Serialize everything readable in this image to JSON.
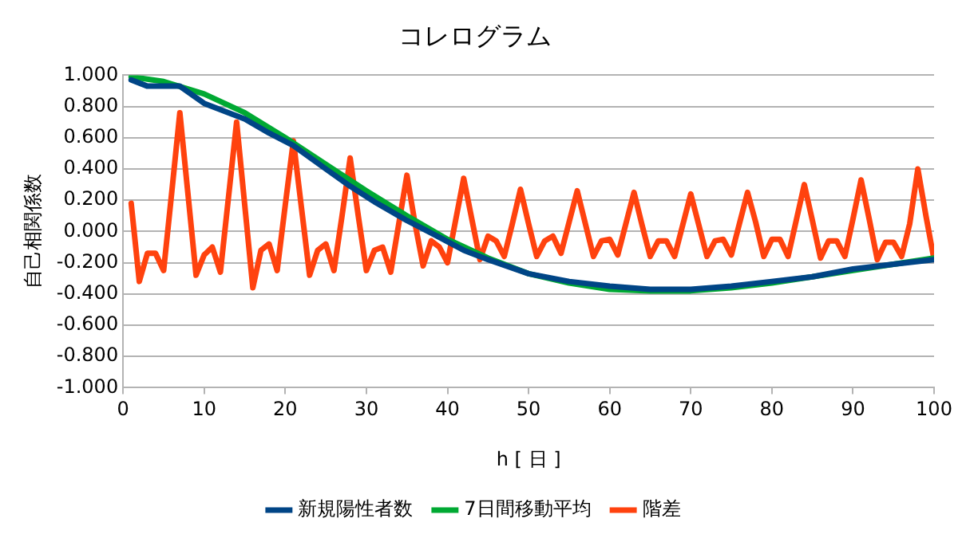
{
  "chart_data": {
    "type": "line",
    "title": "コレログラム",
    "xlabel": "h [ 日 ]",
    "ylabel": "自己相関係数",
    "xlim": [
      0,
      100
    ],
    "xticks": [
      0,
      10,
      20,
      30,
      40,
      50,
      60,
      70,
      80,
      90,
      100
    ],
    "ylim": [
      -1,
      1
    ],
    "yticks": [
      {
        "value": -1,
        "label": "-1.000"
      },
      {
        "value": -0.8,
        "label": "-0.800"
      },
      {
        "value": -0.6,
        "label": "-0.600"
      },
      {
        "value": -0.4,
        "label": "-0.400"
      },
      {
        "value": -0.2,
        "label": "-0.200"
      },
      {
        "value": 0,
        "label": "0.000"
      },
      {
        "value": 0.2,
        "label": "0.200"
      },
      {
        "value": 0.4,
        "label": "0.400"
      },
      {
        "value": 0.6,
        "label": "0.600"
      },
      {
        "value": 0.8,
        "label": "0.800"
      },
      {
        "value": 1,
        "label": "1.000"
      }
    ],
    "grid": "y",
    "legend": "bottom",
    "marker": "none",
    "line_style": "solid",
    "series": [
      {
        "name": "新規陽性者数",
        "color": "#004586",
        "x": [
          1,
          3,
          5,
          7,
          10,
          13,
          15,
          18,
          21,
          25,
          28,
          31,
          35,
          38,
          42,
          45,
          50,
          55,
          60,
          65,
          70,
          75,
          80,
          85,
          90,
          95,
          100
        ],
        "values": [
          0.97,
          0.93,
          0.93,
          0.93,
          0.82,
          0.76,
          0.72,
          0.63,
          0.55,
          0.4,
          0.29,
          0.19,
          0.07,
          -0.01,
          -0.12,
          -0.18,
          -0.27,
          -0.32,
          -0.35,
          -0.37,
          -0.37,
          -0.35,
          -0.32,
          -0.29,
          -0.24,
          -0.21,
          -0.18
        ]
      },
      {
        "name": "7日間移動平均",
        "color": "#00a933",
        "x": [
          1,
          5,
          10,
          15,
          20,
          25,
          30,
          35,
          40,
          45,
          50,
          55,
          60,
          65,
          70,
          75,
          80,
          85,
          90,
          95,
          100
        ],
        "values": [
          0.99,
          0.96,
          0.88,
          0.76,
          0.6,
          0.43,
          0.26,
          0.1,
          -0.05,
          -0.17,
          -0.27,
          -0.33,
          -0.37,
          -0.38,
          -0.38,
          -0.36,
          -0.33,
          -0.29,
          -0.25,
          -0.21,
          -0.17
        ]
      },
      {
        "name": "階差",
        "color": "#ff420e",
        "x": [
          1,
          2,
          3,
          4,
          5,
          6,
          7,
          8,
          9,
          10,
          11,
          12,
          13,
          14,
          15,
          16,
          17,
          18,
          19,
          20,
          21,
          22,
          23,
          24,
          25,
          26,
          27,
          28,
          29,
          30,
          31,
          32,
          33,
          34,
          35,
          36,
          37,
          38,
          39,
          40,
          41,
          42,
          43,
          44,
          45,
          46,
          47,
          48,
          49,
          50,
          51,
          52,
          53,
          54,
          55,
          56,
          57,
          58,
          59,
          60,
          61,
          62,
          63,
          64,
          65,
          66,
          67,
          68,
          69,
          70,
          71,
          72,
          73,
          74,
          75,
          76,
          77,
          78,
          79,
          80,
          81,
          82,
          83,
          84,
          85,
          86,
          87,
          88,
          89,
          90,
          91,
          92,
          93,
          94,
          95,
          96,
          97,
          98,
          99,
          100
        ],
        "values": [
          0.18,
          -0.32,
          -0.14,
          -0.14,
          -0.25,
          0.25,
          0.76,
          0.24,
          -0.28,
          -0.15,
          -0.1,
          -0.26,
          0.22,
          0.7,
          0.17,
          -0.36,
          -0.12,
          -0.08,
          -0.25,
          0.17,
          0.58,
          0.15,
          -0.28,
          -0.12,
          -0.08,
          -0.25,
          0.1,
          0.47,
          0.1,
          -0.25,
          -0.12,
          -0.1,
          -0.26,
          0.05,
          0.36,
          0.05,
          -0.22,
          -0.06,
          -0.1,
          -0.2,
          0.07,
          0.34,
          0.08,
          -0.18,
          -0.03,
          -0.06,
          -0.16,
          0.05,
          0.27,
          0.05,
          -0.16,
          -0.06,
          -0.03,
          -0.14,
          0.06,
          0.26,
          0.05,
          -0.16,
          -0.06,
          -0.05,
          -0.15,
          0.05,
          0.25,
          0.04,
          -0.16,
          -0.06,
          -0.06,
          -0.16,
          0.04,
          0.24,
          0.04,
          -0.16,
          -0.06,
          -0.05,
          -0.15,
          0.05,
          0.25,
          0.06,
          -0.16,
          -0.05,
          -0.05,
          -0.16,
          0.07,
          0.3,
          0.07,
          -0.17,
          -0.06,
          -0.06,
          -0.16,
          0.08,
          0.33,
          0.08,
          -0.18,
          -0.07,
          -0.07,
          -0.16,
          0.05,
          0.4,
          0.1,
          -0.18
        ]
      }
    ]
  }
}
